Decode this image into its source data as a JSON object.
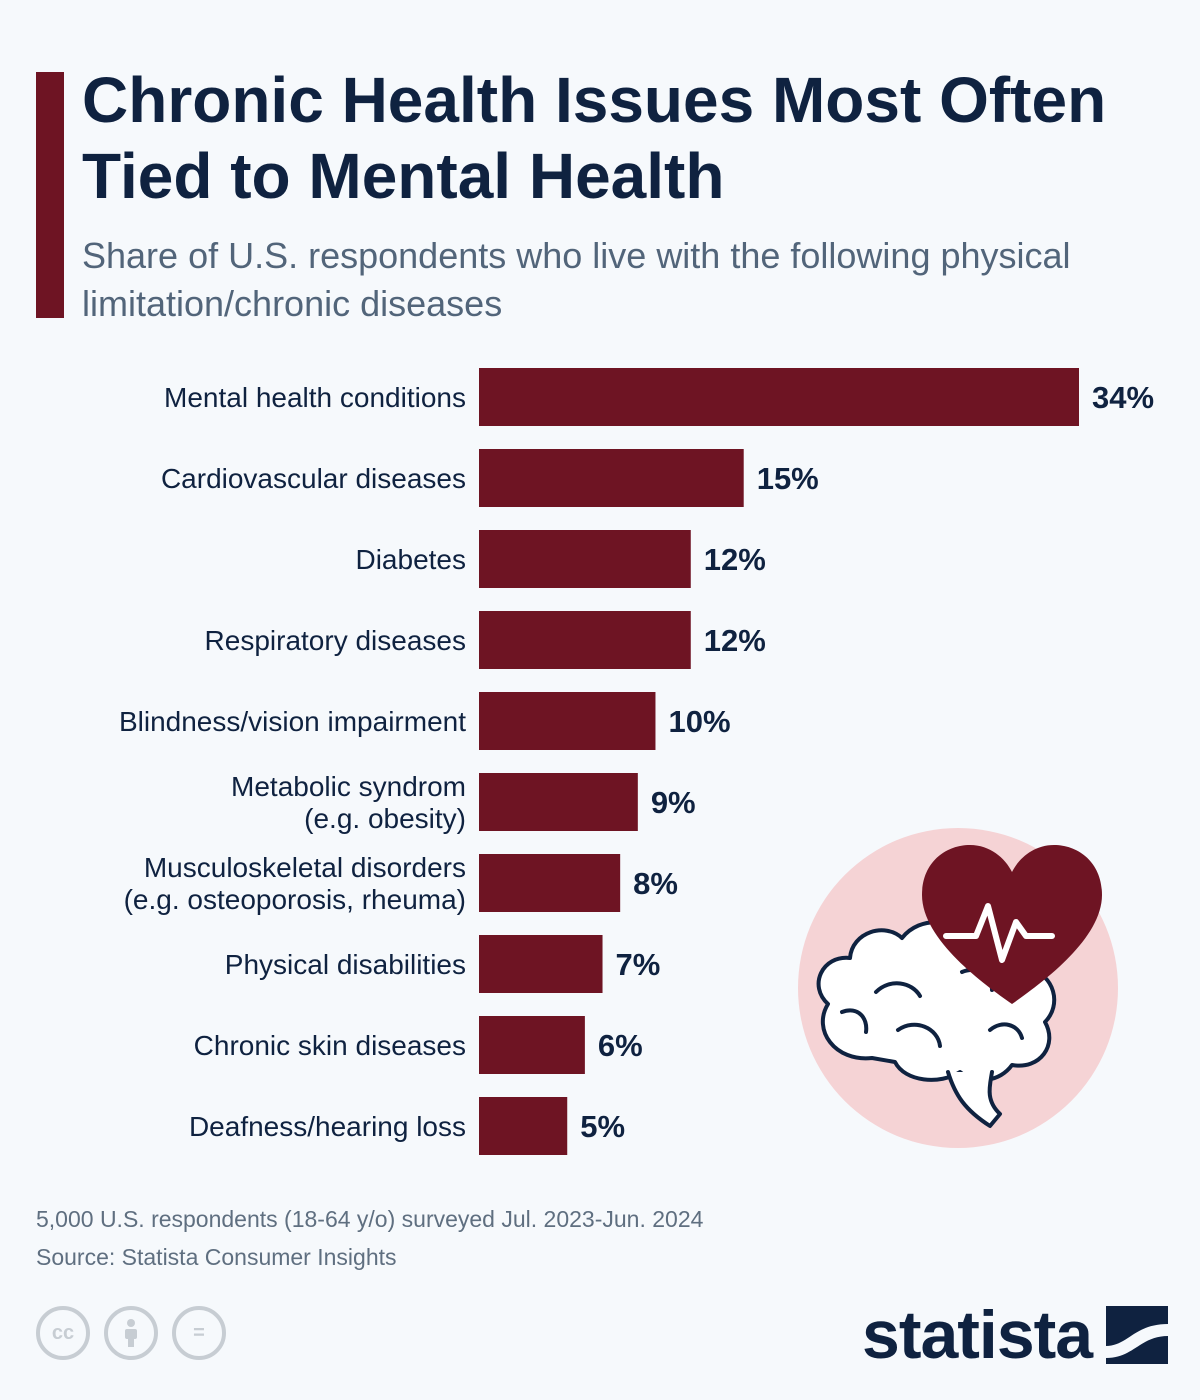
{
  "header": {
    "title": "Chronic Health Issues Most Often Tied to Mental Health",
    "subtitle": "Share of U.S. respondents who live with the following physical limitation/chronic diseases"
  },
  "chart_data": {
    "type": "bar",
    "orientation": "horizontal",
    "categories": [
      [
        "Mental health conditions"
      ],
      [
        "Cardiovascular diseases"
      ],
      [
        "Diabetes"
      ],
      [
        "Respiratory diseases"
      ],
      [
        "Blindness/vision impairment"
      ],
      [
        "Metabolic syndrom",
        "(e.g. obesity)"
      ],
      [
        "Musculoskeletal disorders",
        "(e.g. osteoporosis, rheuma)"
      ],
      [
        "Physical disabilities"
      ],
      [
        "Chronic skin diseases"
      ],
      [
        "Deafness/hearing loss"
      ]
    ],
    "values": [
      34,
      15,
      12,
      12,
      10,
      9,
      8,
      7,
      6,
      5
    ],
    "value_labels": [
      "34%",
      "15%",
      "12%",
      "12%",
      "10%",
      "9%",
      "8%",
      "7%",
      "6%",
      "5%"
    ],
    "unit": "%",
    "xlim": [
      0,
      34
    ],
    "grid": false,
    "legend": "none",
    "colors": {
      "bar": "#6e1423",
      "label": "#0f2240",
      "illustration_bg": "#f5d3d5"
    }
  },
  "footer": {
    "note": "5,000 U.S. respondents (18-64 y/o) surveyed Jul. 2023-Jun. 2024",
    "source": "Source: Statista Consumer Insights",
    "brand": "statista",
    "license_icons": [
      "cc-icon",
      "attribution-icon",
      "no-derivatives-icon"
    ],
    "cc_text": "cc",
    "nd_text": "="
  },
  "illustration": {
    "icons": [
      "brain-icon",
      "heart-icon",
      "heartbeat-icon"
    ]
  }
}
